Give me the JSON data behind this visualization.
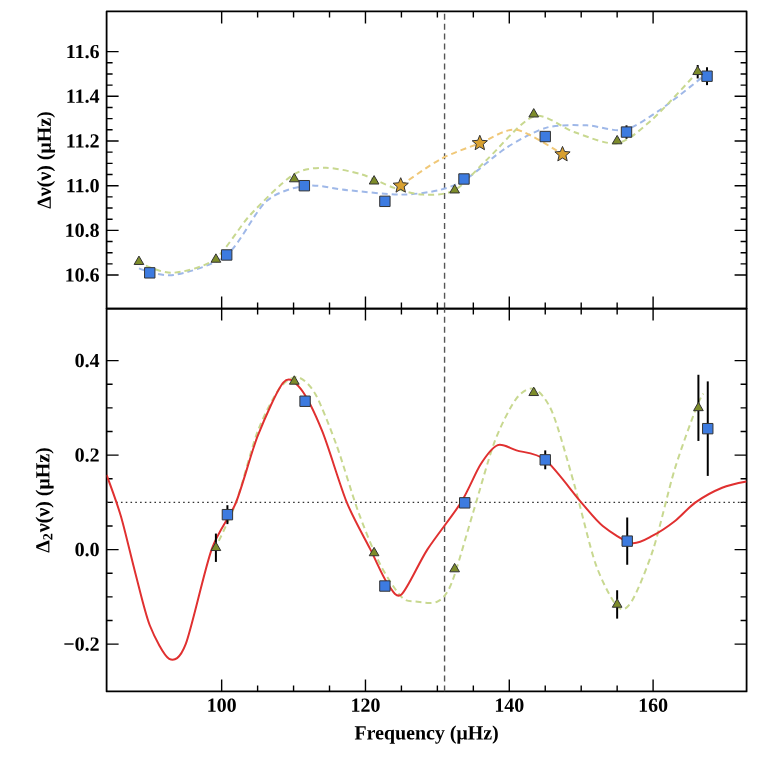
{
  "chart_data": [
    {
      "type": "scatter",
      "ylabel": "Δν(ν) (μHz)",
      "xlim": [
        84,
        173
      ],
      "ylim": [
        10.45,
        11.78
      ],
      "xticks": [
        100,
        120,
        140,
        160
      ],
      "yticks": [
        10.6,
        10.8,
        {
          "value": 11,
          "label": "11.0"
        },
        11.2,
        11.4,
        11.6
      ],
      "tick_labels": "y",
      "ref_lines": [
        {
          "axis": "x",
          "value": 131,
          "color": "#555555",
          "line_style": "dashed"
        }
      ],
      "series": [
        {
          "type": "line",
          "color": "#9fb8e8",
          "line_style": "dashed",
          "marker": "none",
          "x": [
            88.5,
            93.3,
            100.7,
            106.2,
            111.7,
            117.5,
            124.9,
            130.2,
            134,
            139.6,
            145.2,
            150.8,
            156,
            161,
            167
          ],
          "values": [
            10.63,
            10.6,
            10.69,
            10.93,
            11.0,
            10.98,
            10.96,
            10.98,
            11.03,
            11.17,
            11.26,
            11.27,
            11.25,
            11.34,
            11.49
          ]
        },
        {
          "type": "line",
          "color": "#c8d890",
          "line_style": "dashed",
          "marker": "none",
          "x": [
            88.2,
            93,
            99,
            104,
            110,
            114.5,
            119.5,
            124,
            128,
            132.4,
            137,
            143.4,
            149,
            155,
            160,
            166.2
          ],
          "values": [
            10.66,
            10.61,
            10.67,
            10.87,
            11.05,
            11.08,
            11.05,
            10.99,
            10.96,
            10.98,
            11.12,
            11.31,
            11.24,
            11.19,
            11.3,
            11.51
          ]
        },
        {
          "type": "line",
          "color": "#f0c878",
          "line_style": "dashed",
          "marker": "none",
          "x": [
            124.9,
            130.5,
            135.9,
            141,
            147.4
          ],
          "values": [
            11.0,
            11.12,
            11.19,
            11.25,
            11.14
          ]
        },
        {
          "type": "scatter",
          "color": "#3d7be0",
          "marker": "square",
          "x": [
            90.0,
            100.7,
            111.5,
            122.7,
            133.7,
            145.0,
            156.3,
            167.5
          ],
          "values": [
            10.61,
            10.69,
            11.0,
            10.93,
            11.03,
            11.22,
            11.24,
            11.49
          ],
          "errors": [
            null,
            null,
            null,
            null,
            null,
            null,
            0.03,
            0.04
          ]
        },
        {
          "type": "scatter",
          "color": "#7d8c2a",
          "marker": "triangle",
          "x": [
            88.5,
            99.2,
            110.1,
            121.2,
            132.4,
            143.4,
            155.0,
            166.2
          ],
          "values": [
            10.66,
            10.67,
            11.03,
            11.02,
            10.98,
            11.32,
            11.2,
            11.51
          ],
          "errors": [
            null,
            null,
            null,
            null,
            null,
            null,
            null,
            0.03
          ]
        },
        {
          "type": "scatter",
          "color": "#d8a030",
          "marker": "star",
          "x": [
            124.9,
            135.9,
            147.4
          ],
          "values": [
            11.0,
            11.19,
            11.14
          ]
        }
      ]
    },
    {
      "type": "scatter",
      "ylabel": "Δ$_{2}$ν(ν) (μHz)",
      "xlabel": "Frequency (μHz)",
      "xlim": [
        84,
        173
      ],
      "ylim": [
        -0.3,
        0.51
      ],
      "xticks": [
        100,
        120,
        140,
        160
      ],
      "yticks": [
        {
          "value": -0.2,
          "label": "−0.2"
        },
        {
          "value": 0,
          "label": "0.0"
        },
        0.2,
        0.4
      ],
      "ref_lines": [
        {
          "axis": "x",
          "value": 131,
          "color": "#555555",
          "line_style": "dashed"
        },
        {
          "axis": "y",
          "value": 0.1,
          "color": "#333333",
          "line_style": "dotted"
        }
      ],
      "series": [
        {
          "type": "line",
          "color": "#c8d890",
          "line_style": "dashed",
          "marker": "none",
          "x": [
            99,
            102,
            105,
            108,
            110.5,
            113,
            116,
            119,
            122,
            125,
            127,
            130,
            132,
            135,
            138,
            141,
            143.5,
            146,
            149,
            152,
            155,
            157,
            160,
            163,
            166,
            167
          ],
          "values": [
            0.0,
            0.1,
            0.25,
            0.34,
            0.365,
            0.33,
            0.22,
            0.08,
            -0.03,
            -0.1,
            -0.11,
            -0.11,
            -0.07,
            0.08,
            0.23,
            0.32,
            0.34,
            0.29,
            0.14,
            -0.03,
            -0.12,
            -0.11,
            0.0,
            0.17,
            0.3,
            0.33
          ]
        },
        {
          "type": "line",
          "color": "#e03030",
          "line_style": "solid",
          "marker": "none",
          "x": [
            84,
            86,
            88,
            90,
            92.7,
            95,
            98.6,
            102,
            105,
            108.6,
            111,
            114,
            117.4,
            120.7,
            123,
            125,
            128.6,
            133.3,
            136,
            138.4,
            141,
            145,
            150,
            153,
            157,
            160,
            163,
            165.9,
            169.6,
            173
          ],
          "values": [
            0.158,
            0.07,
            -0.05,
            -0.16,
            -0.231,
            -0.2,
            0.0,
            0.1,
            0.24,
            0.354,
            0.34,
            0.25,
            0.1,
            0.0,
            -0.07,
            -0.095,
            0.0,
            0.1,
            0.18,
            0.221,
            0.21,
            0.19,
            0.1,
            0.05,
            0.014,
            0.03,
            0.06,
            0.1,
            0.131,
            0.144
          ]
        },
        {
          "type": "scatter",
          "color": "#3d7be0",
          "marker": "square",
          "x": [
            100.8,
            111.6,
            122.7,
            133.8,
            145.0,
            156.4,
            167.6
          ],
          "values": [
            0.074,
            0.314,
            -0.077,
            0.099,
            0.19,
            0.018,
            0.256
          ],
          "errors": [
            0.02,
            null,
            null,
            null,
            0.02,
            0.05,
            0.1
          ]
        },
        {
          "type": "scatter",
          "color": "#7d8c2a",
          "marker": "triangle",
          "x": [
            99.2,
            110.1,
            121.2,
            132.4,
            143.4,
            155.0,
            166.3
          ],
          "values": [
            0.004,
            0.356,
            -0.007,
            -0.041,
            0.332,
            -0.116,
            0.3
          ],
          "errors": [
            0.03,
            null,
            null,
            null,
            null,
            0.03,
            0.07
          ]
        }
      ]
    }
  ]
}
